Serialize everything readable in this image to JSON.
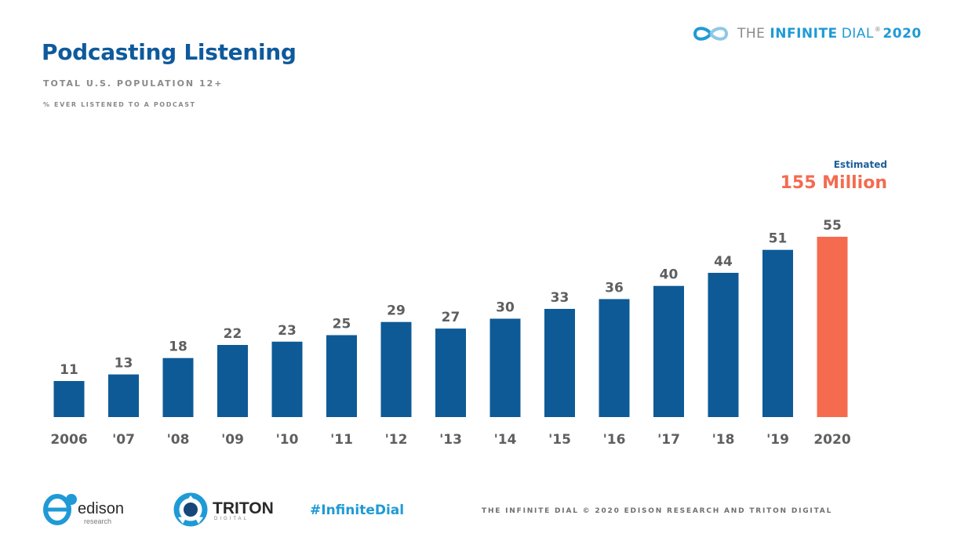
{
  "header": {
    "title": "Podcasting Listening",
    "subtitle": "TOTAL U.S. POPULATION 12+",
    "subsubtitle": "% EVER LISTENED TO A PODCAST"
  },
  "brand": {
    "the": "THE",
    "infinite": "INFINITE",
    "dial": "DIAL",
    "reg": "®",
    "year": "2020"
  },
  "callout": {
    "estimated": "Estimated",
    "million": "155 Million"
  },
  "chart_data": {
    "type": "bar",
    "categories": [
      "2006",
      "'07",
      "'08",
      "'09",
      "'10",
      "'11",
      "'12",
      "'13",
      "'14",
      "'15",
      "'16",
      "'17",
      "'18",
      "'19",
      "2020"
    ],
    "values": [
      11,
      13,
      18,
      22,
      23,
      25,
      29,
      27,
      30,
      33,
      36,
      40,
      44,
      51,
      55
    ],
    "title": "Podcasting Listening",
    "subtitle": "TOTAL U.S. POPULATION 12+",
    "ylabel": "",
    "xlabel": "",
    "ylim": [
      0,
      55
    ],
    "grid": false,
    "colors": {
      "default": "#0e5a96",
      "highlight": "#f46b50",
      "labels": "#5f5f5f"
    },
    "highlight_index": 14
  },
  "footer": {
    "edison": "edison",
    "edison_sub": "research",
    "triton": "TRITON",
    "triton_sub": "DIGITAL",
    "hashtag": "#InfiniteDial",
    "copyright": "THE INFINITE DIAL   © 2020 EDISON RESEARCH AND TRITON DIGITAL"
  }
}
